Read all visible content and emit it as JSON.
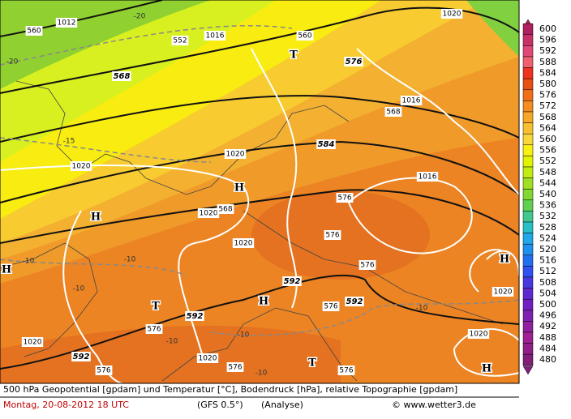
{
  "map": {
    "labels": [
      "560",
      "1012",
      "-20",
      "1016",
      "552",
      "560",
      "1020",
      "T",
      "576",
      "-20",
      "568",
      "1016",
      "568",
      "-15",
      "584",
      "1020",
      "1020",
      "H",
      "1016",
      "576",
      "1020",
      "568",
      "H",
      "576",
      "1020",
      "-10",
      "-10",
      "H",
      "576",
      "H",
      "592",
      "-10",
      "1020",
      "T",
      "H",
      "576",
      "592",
      "-10",
      "592",
      "576",
      "-10",
      "-10",
      "1020",
      "1020",
      "592",
      "1020",
      "T",
      "576",
      "576",
      "-10",
      "576",
      "H"
    ]
  },
  "legend": {
    "levels": [
      600,
      596,
      592,
      588,
      584,
      580,
      576,
      572,
      568,
      564,
      560,
      556,
      552,
      548,
      544,
      540,
      536,
      532,
      528,
      524,
      520,
      516,
      512,
      508,
      504,
      500,
      496,
      492,
      488,
      484,
      480
    ],
    "colors": [
      "#b02060",
      "#c83068",
      "#e04878",
      "#f06070",
      "#f03020",
      "#e85010",
      "#f07018",
      "#f48c20",
      "#f8a828",
      "#f8c030",
      "#f8d838",
      "#f8f010",
      "#e0f400",
      "#c0ec10",
      "#a0e020",
      "#80d830",
      "#60d050",
      "#40c890",
      "#28c0c8",
      "#20a8e8",
      "#2090f0",
      "#2070f0",
      "#3050f0",
      "#4838e0",
      "#6028d0",
      "#7020c0",
      "#8020b0",
      "#9020a0",
      "#a02094",
      "#902088",
      "#802078"
    ]
  },
  "footer": {
    "description": "500 hPa Geopotential [gpdam] und Temperatur [°C], Bodendruck [hPa], relative Topographie [gpdam]",
    "date": "Montag, 20-08-2012  18 UTC",
    "model": "(GFS 0.5°)",
    "run": "(Analyse)",
    "source": "© www.wetter3.de"
  }
}
